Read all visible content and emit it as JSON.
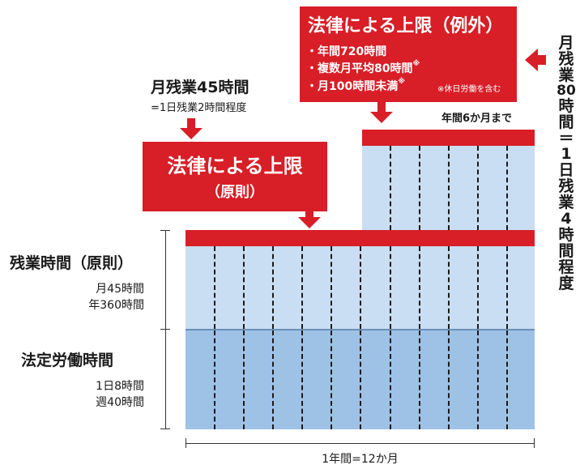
{
  "exception_box": {
    "title": "法律による上限（例外）",
    "items": [
      "・年間720時間",
      "・複数月平均80時間",
      "・月100時間未満"
    ],
    "asterisk": "※",
    "note": "※休日労働を含む"
  },
  "exception_duration": "年間6か月まで",
  "vertical_label": [
    "月",
    "残",
    "業",
    "80",
    "時",
    "間",
    "＝",
    "1",
    "日",
    "残",
    "業",
    "4",
    "時",
    "間",
    "程",
    "度"
  ],
  "monthly_45": {
    "title": "月残業45時間",
    "subtitle": "=1日残業2時間程度"
  },
  "principle_box": {
    "line1": "法律による上限",
    "line2": "（原則）"
  },
  "overtime_label": {
    "title": "残業時間（原則）",
    "line1": "月45時間",
    "line2": "年360時間"
  },
  "legal_label": {
    "title": "法定労働時間",
    "line1": "1日8時間",
    "line2": "週40時間"
  },
  "x_label": "1年間=12か月",
  "colors": {
    "red": "#d81e27",
    "light_blue": "#c9ddf3",
    "mid_blue": "#9ec1e6"
  }
}
